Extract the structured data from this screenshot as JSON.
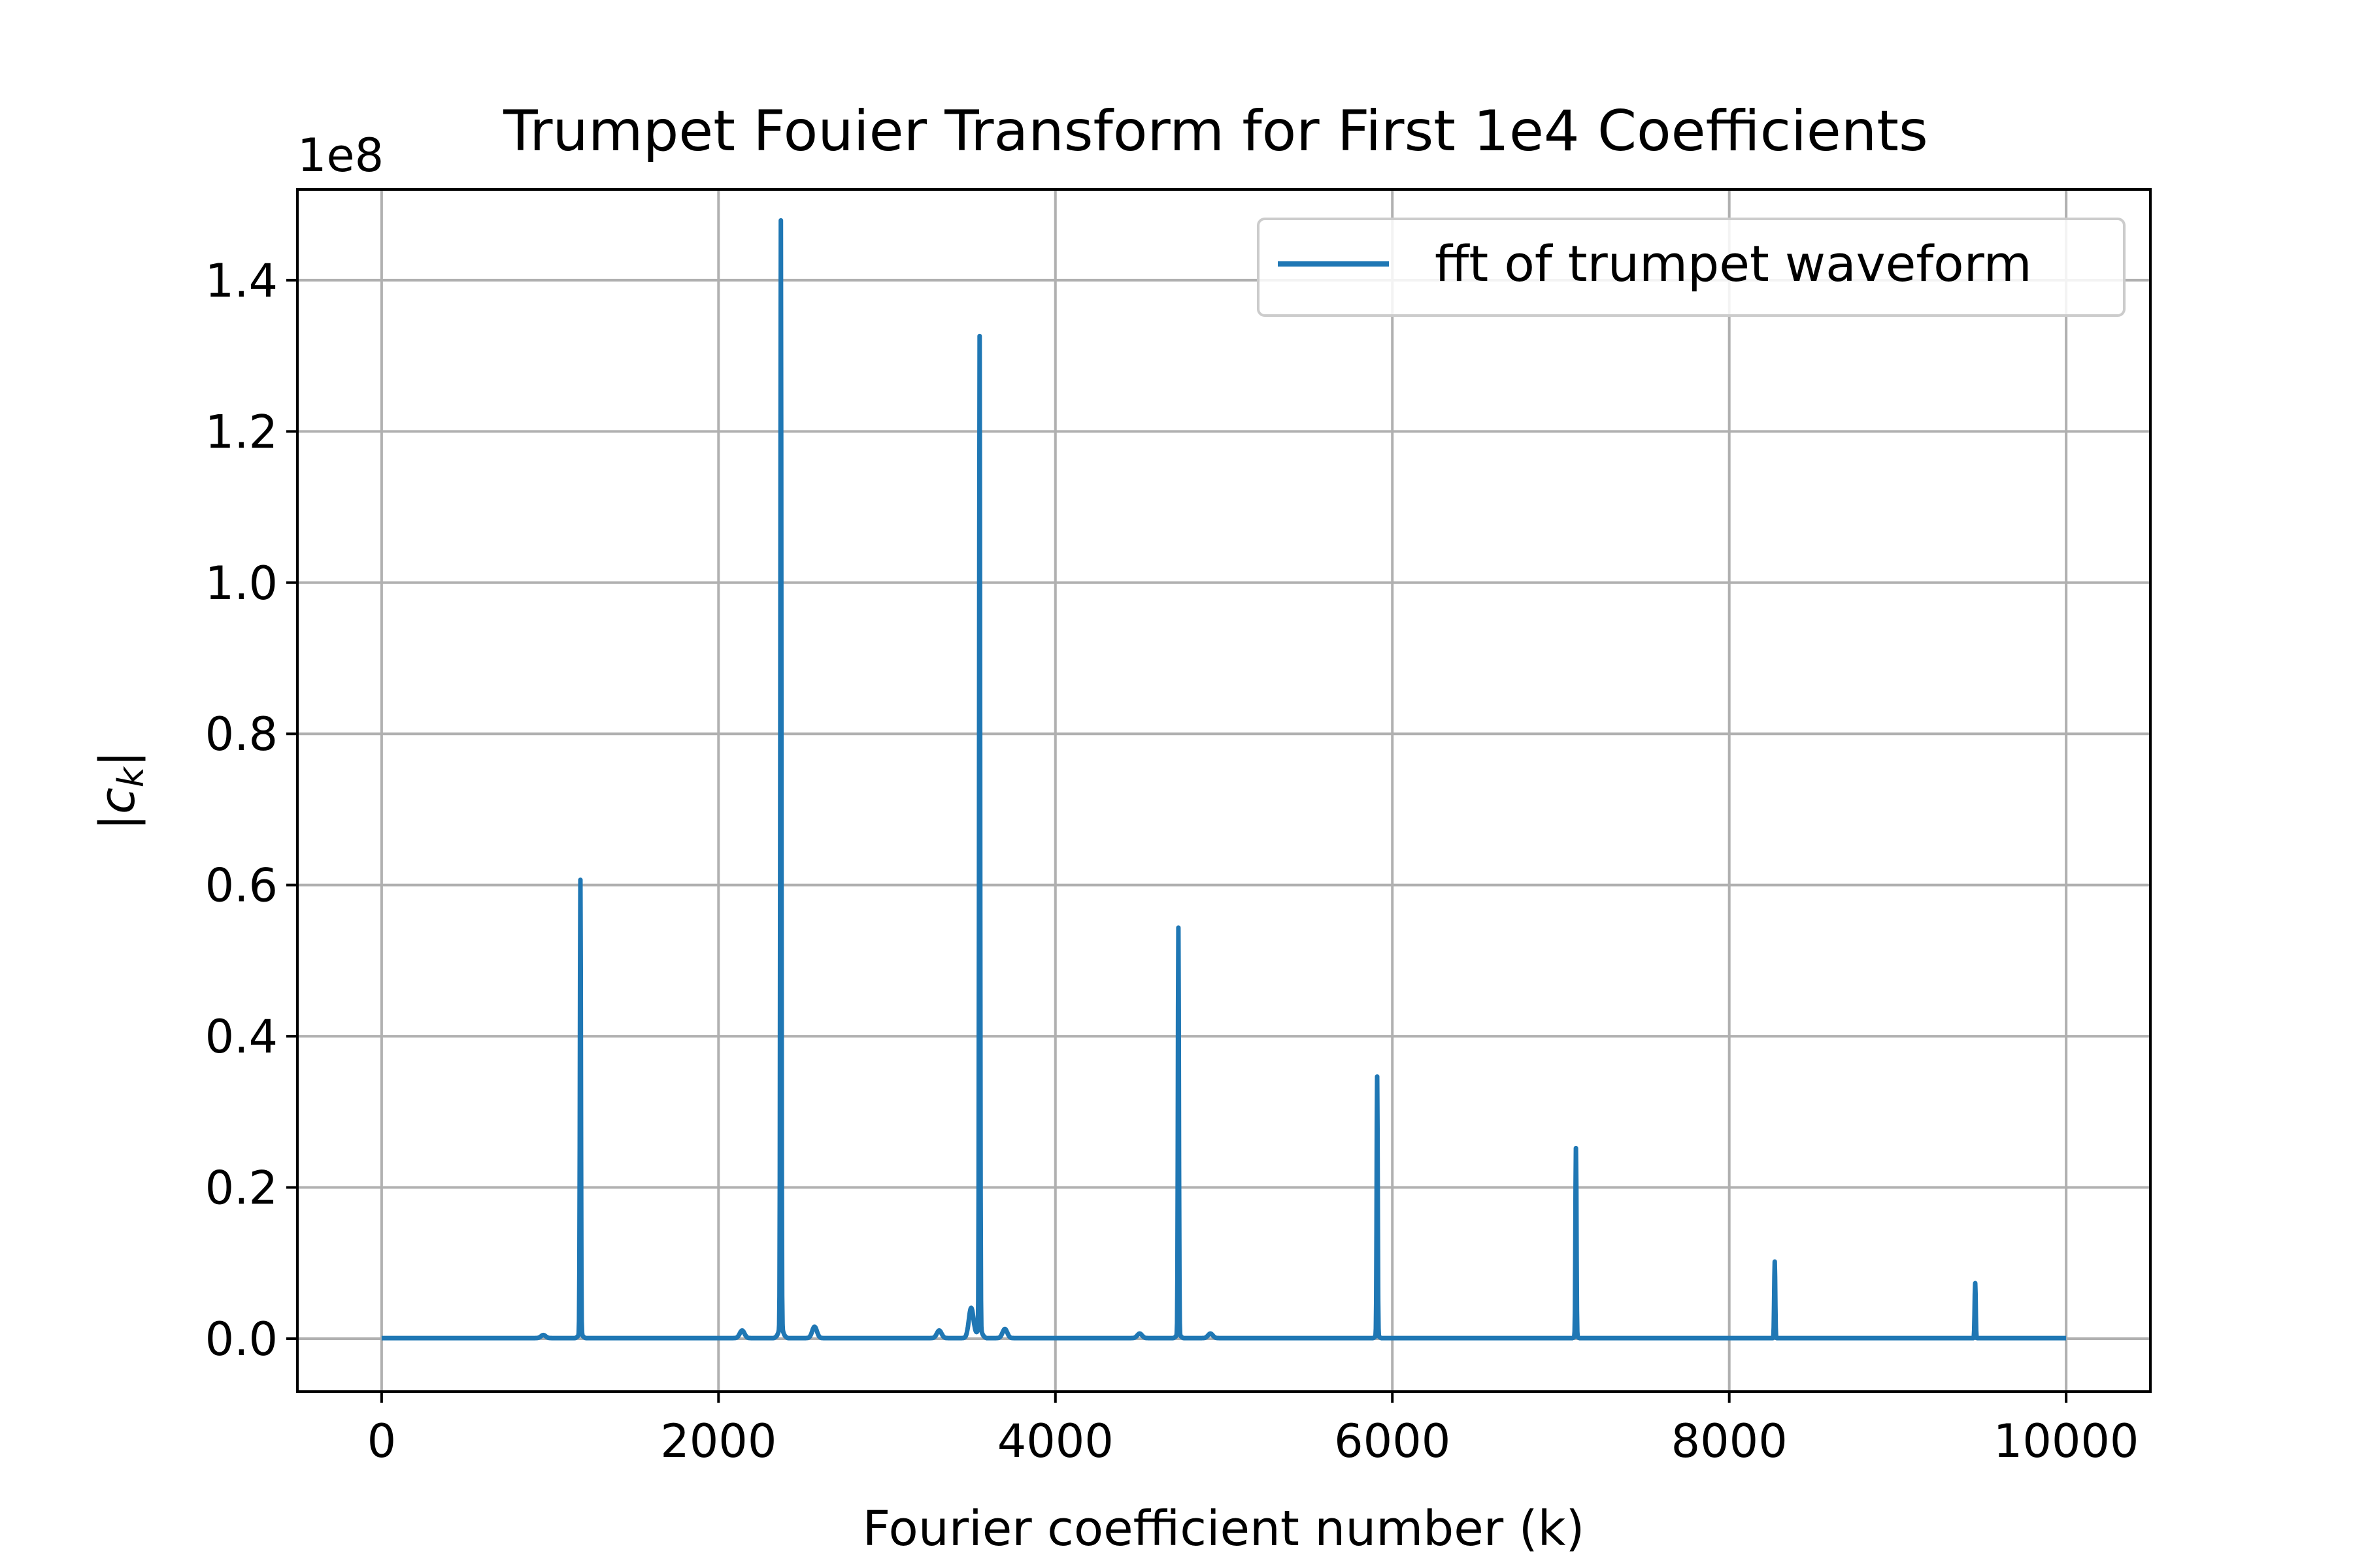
{
  "chart_data": {
    "type": "line",
    "title": "Trumpet Fouier Transform for First 1e4 Coefficients",
    "xlabel": "Fourier coefficient number (k)",
    "ylabel": "|c_k|",
    "y_scale_label": "1e8",
    "xlim": [
      -500,
      10500
    ],
    "ylim": [
      -0.07,
      1.52
    ],
    "x_ticks": [
      0,
      2000,
      4000,
      6000,
      8000,
      10000
    ],
    "x_tick_labels": [
      "0",
      "2000",
      "4000",
      "6000",
      "8000",
      "10000"
    ],
    "y_ticks": [
      0.0,
      0.2,
      0.4,
      0.6,
      0.8,
      1.0,
      1.2,
      1.4
    ],
    "y_tick_labels": [
      "0.0",
      "0.2",
      "0.4",
      "0.6",
      "0.8",
      "1.0",
      "1.2",
      "1.4"
    ],
    "grid": true,
    "legend_position": "top-right",
    "series": [
      {
        "name": "fft of trumpet waveform",
        "color": "#1f77b4",
        "peaks": [
          {
            "x": 1180,
            "y": 0.595
          },
          {
            "x": 2370,
            "y": 1.45
          },
          {
            "x": 3550,
            "y": 1.3
          },
          {
            "x": 4730,
            "y": 0.533
          },
          {
            "x": 5910,
            "y": 0.34
          },
          {
            "x": 7090,
            "y": 0.247
          },
          {
            "x": 8270,
            "y": 0.1
          },
          {
            "x": 9460,
            "y": 0.072
          }
        ],
        "minor_bumps": [
          {
            "x": 960,
            "y": 0.004
          },
          {
            "x": 2140,
            "y": 0.01
          },
          {
            "x": 2570,
            "y": 0.015
          },
          {
            "x": 3310,
            "y": 0.01
          },
          {
            "x": 3500,
            "y": 0.04
          },
          {
            "x": 3700,
            "y": 0.012
          },
          {
            "x": 4500,
            "y": 0.006
          },
          {
            "x": 4920,
            "y": 0.006
          }
        ],
        "x_start": 0,
        "x_end": 10000
      }
    ]
  }
}
